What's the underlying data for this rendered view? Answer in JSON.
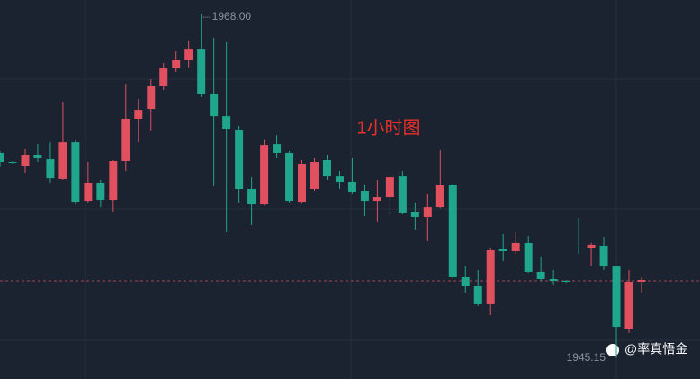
{
  "chart_data": {
    "type": "candlestick",
    "title": "1小时图",
    "categories": [
      null,
      null,
      null,
      null,
      null,
      null,
      null,
      null,
      null,
      null,
      null,
      null,
      null,
      null,
      null,
      null,
      null,
      null,
      null,
      null,
      null,
      null,
      null,
      null,
      null,
      null,
      null,
      null,
      null,
      null,
      null,
      null,
      null,
      null,
      null,
      null,
      null,
      null,
      null,
      null,
      null,
      null,
      null,
      null,
      null,
      null,
      null,
      null,
      null,
      null,
      null,
      null
    ],
    "open": [
      1958.75,
      1958.15,
      1957.91,
      1958.63,
      1958.33,
      1957.02,
      1959.46,
      1955.58,
      1956.78,
      1955.64,
      1958.21,
      1961.02,
      1961.67,
      1963.22,
      1964.36,
      1964.9,
      1965.67,
      1962.69,
      1961.19,
      1960.3,
      1956.36,
      1955.34,
      1959.34,
      1958.75,
      1955.52,
      1956.36,
      1958.27,
      1957.19,
      1956.84,
      1956.24,
      1955.58,
      1955.82,
      1957.19,
      1954.81,
      1954.51,
      1955.16,
      1956.66,
      1950.51,
      1949.91,
      1948.72,
      1952.36,
      1952.24,
      1952.78,
      1950.87,
      1950.39,
      1950.27,
      1952.48,
      1952.42,
      1952.6,
      1951.22,
      1947.1,
      1950.21
    ],
    "high": [
      1958.87,
      1958.21,
      1959.04,
      1959.34,
      1959.46,
      1962.15,
      1959.64,
      1958.15,
      1956.96,
      1958.27,
      1963.34,
      1962.33,
      1963.64,
      1964.72,
      1965.49,
      1966.21,
      1968.0,
      1966.39,
      1966.09,
      1960.54,
      1957.13,
      1959.64,
      1959.94,
      1958.87,
      1958.27,
      1958.45,
      1958.63,
      1957.55,
      1958.45,
      1956.66,
      1956.96,
      1957.25,
      1957.55,
      1955.46,
      1956.06,
      1958.93,
      1956.72,
      1951.22,
      1950.99,
      1952.42,
      1953.37,
      1953.49,
      1953.25,
      1951.88,
      1950.99,
      1950.33,
      1954.45,
      1952.78,
      1953.19,
      1951.28,
      1950.99,
      1950.51
    ],
    "low": [
      1957.85,
      1958.03,
      1957.43,
      1958.15,
      1956.78,
      1956.96,
      1955.34,
      1955.46,
      1955.16,
      1954.87,
      1957.55,
      1959.46,
      1960.24,
      1962.93,
      1964.12,
      1964.42,
      1962.45,
      1956.54,
      1953.49,
      1955.46,
      1953.97,
      1955.28,
      1958.45,
      1955.46,
      1955.4,
      1956.24,
      1956.96,
      1956.36,
      1956.06,
      1954.57,
      1954.15,
      1954.69,
      1954.69,
      1953.67,
      1952.9,
      1955.1,
      1950.39,
      1949.49,
      1948.6,
      1948.0,
      1951.58,
      1952.06,
      1950.81,
      1950.27,
      1949.97,
      1950.15,
      1952.06,
      1951.22,
      1950.99,
      1945.15,
      1946.81,
      1949.49
    ],
    "close": [
      1958.15,
      1958.09,
      1958.63,
      1958.39,
      1957.07,
      1959.46,
      1955.52,
      1956.78,
      1955.64,
      1958.21,
      1961.02,
      1961.61,
      1963.22,
      1964.36,
      1964.9,
      1965.67,
      1962.69,
      1961.19,
      1960.36,
      1956.36,
      1955.34,
      1959.28,
      1958.75,
      1955.58,
      1958.03,
      1958.15,
      1957.19,
      1956.84,
      1956.18,
      1955.58,
      1955.82,
      1957.13,
      1954.75,
      1954.51,
      1955.16,
      1956.6,
      1950.51,
      1949.91,
      1948.72,
      1952.3,
      1952.24,
      1952.78,
      1950.87,
      1950.39,
      1950.27,
      1950.21,
      1952.42,
      1952.66,
      1951.22,
      1947.22,
      1950.21,
      1950.33
    ],
    "up_color": "#e0505e",
    "down_color": "#1fa68c",
    "ylim": [
      1943.76,
      1968.9
    ],
    "high_label": {
      "value": 1968,
      "label": "1968.00"
    },
    "low_label": {
      "value": 1945.15,
      "label": "1945.15"
    },
    "price_line": 1950.27,
    "watermark": "@率真悟金"
  }
}
